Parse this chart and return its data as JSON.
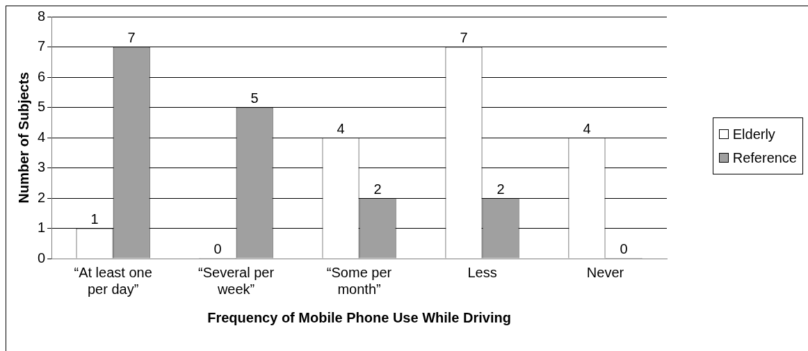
{
  "chart_data": {
    "type": "bar",
    "xlabel": "Frequency of Mobile Phone Use While Driving",
    "ylabel": "Number of Subjects",
    "categories": [
      "“At least one per day”",
      "“Several per week”",
      "“Some per month”",
      "Less",
      "Never"
    ],
    "series": [
      {
        "name": "Elderly",
        "color": "#ffffff",
        "values": [
          1,
          0,
          4,
          7,
          4
        ]
      },
      {
        "name": "Reference",
        "color": "#a0a0a0",
        "values": [
          7,
          5,
          2,
          2,
          0
        ]
      }
    ],
    "ylim": [
      0,
      8
    ],
    "yticks": [
      0,
      1,
      2,
      3,
      4,
      5,
      6,
      7,
      8
    ],
    "grid": "y",
    "legend": "right",
    "data_labels": true
  }
}
